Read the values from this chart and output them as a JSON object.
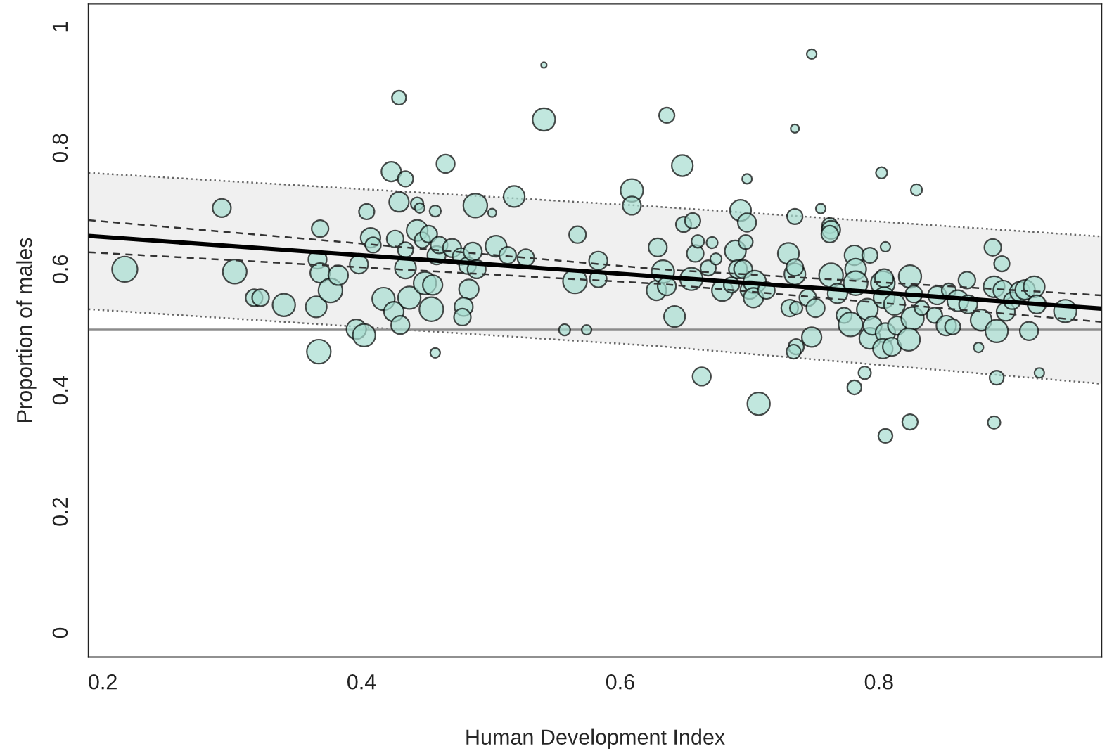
{
  "chart_data": {
    "type": "bubble",
    "xlabel": "Human Development Index",
    "ylabel": "Proportion of males",
    "xlim": [
      0.189,
      0.972
    ],
    "ylim": [
      -0.04,
      1.038
    ],
    "xticks": [
      0.2,
      0.4,
      0.6,
      0.8
    ],
    "yticks": [
      0,
      0.2,
      0.4,
      0.6,
      0.8,
      1
    ],
    "grid": false,
    "ref_lines": [
      {
        "axis": "y",
        "value": 0.5,
        "color": "#8c8c8c"
      }
    ],
    "series": [
      {
        "color": "#a6ddd0",
        "x": [
          0.217,
          0.292,
          0.302,
          0.317,
          0.322,
          0.34,
          0.367,
          0.365,
          0.368,
          0.366,
          0.368,
          0.376,
          0.382,
          0.398,
          0.396,
          0.402,
          0.404,
          0.407,
          0.409,
          0.417,
          0.423,
          0.425,
          0.426,
          0.429,
          0.429,
          0.434,
          0.43,
          0.434,
          0.434,
          0.437,
          0.443,
          0.445,
          0.443,
          0.447,
          0.449,
          0.454,
          0.452,
          0.455,
          0.457,
          0.457,
          0.458,
          0.46,
          0.465,
          0.47,
          0.477,
          0.482,
          0.483,
          0.479,
          0.478,
          0.488,
          0.486,
          0.489,
          0.501,
          0.504,
          0.513,
          0.518,
          0.527,
          0.541,
          0.541,
          0.557,
          0.574,
          0.565,
          0.567,
          0.583,
          0.583,
          0.609,
          0.609,
          0.629,
          0.628,
          0.633,
          0.636,
          0.642,
          0.636,
          0.648,
          0.649,
          0.656,
          0.655,
          0.658,
          0.66,
          0.663,
          0.668,
          0.671,
          0.674,
          0.679,
          0.686,
          0.689,
          0.691,
          0.695,
          0.693,
          0.698,
          0.698,
          0.697,
          0.7,
          0.704,
          0.707,
          0.703,
          0.713,
          0.73,
          0.731,
          0.735,
          0.735,
          0.735,
          0.735,
          0.736,
          0.734,
          0.736,
          0.745,
          0.748,
          0.748,
          0.751,
          0.755,
          0.763,
          0.762,
          0.763,
          0.762,
          0.768,
          0.773,
          0.778,
          0.781,
          0.782,
          0.781,
          0.782,
          0.789,
          0.793,
          0.791,
          0.793,
          0.795,
          0.802,
          0.803,
          0.804,
          0.805,
          0.805,
          0.804,
          0.805,
          0.803,
          0.812,
          0.81,
          0.814,
          0.824,
          0.824,
          0.827,
          0.826,
          0.823,
          0.829,
          0.833,
          0.845,
          0.843,
          0.852,
          0.854,
          0.861,
          0.857,
          0.868,
          0.869,
          0.877,
          0.879,
          0.888,
          0.889,
          0.891,
          0.889,
          0.891,
          0.895,
          0.896,
          0.898,
          0.903,
          0.909,
          0.913,
          0.916,
          0.92,
          0.922,
          0.924,
          0.944
        ],
        "values": [
          0.6,
          0.701,
          0.596,
          0.553,
          0.553,
          0.541,
          0.464,
          0.538,
          0.667,
          0.616,
          0.594,
          0.565,
          0.59,
          0.608,
          0.501,
          0.491,
          0.695,
          0.652,
          0.64,
          0.551,
          0.761,
          0.53,
          0.65,
          0.711,
          0.883,
          0.749,
          0.508,
          0.602,
          0.632,
          0.553,
          0.708,
          0.701,
          0.664,
          0.648,
          0.577,
          0.534,
          0.658,
          0.574,
          0.696,
          0.462,
          0.623,
          0.64,
          0.774,
          0.635,
          0.621,
          0.606,
          0.567,
          0.538,
          0.521,
          0.705,
          0.629,
          0.6,
          0.693,
          0.638,
          0.623,
          0.72,
          0.619,
          0.937,
          0.847,
          0.5,
          0.5,
          0.58,
          0.657,
          0.614,
          0.584,
          0.73,
          0.705,
          0.636,
          0.565,
          0.596,
          0.572,
          0.522,
          0.854,
          0.771,
          0.674,
          0.68,
          0.584,
          0.626,
          0.646,
          0.423,
          0.602,
          0.644,
          0.617,
          0.565,
          0.574,
          0.63,
          0.6,
          0.6,
          0.697,
          0.677,
          0.749,
          0.645,
          0.566,
          0.579,
          0.378,
          0.553,
          0.565,
          0.626,
          0.536,
          0.832,
          0.687,
          0.592,
          0.603,
          0.472,
          0.464,
          0.536,
          0.553,
          0.488,
          0.955,
          0.536,
          0.7,
          0.59,
          0.672,
          0.665,
          0.658,
          0.56,
          0.524,
          0.509,
          0.623,
          0.6,
          0.405,
          0.577,
          0.429,
          0.623,
          0.534,
          0.486,
          0.507,
          0.759,
          0.577,
          0.585,
          0.637,
          0.325,
          0.553,
          0.495,
          0.469,
          0.542,
          0.472,
          0.507,
          0.348,
          0.588,
          0.559,
          0.519,
          0.484,
          0.731,
          0.536,
          0.557,
          0.524,
          0.507,
          0.565,
          0.548,
          0.505,
          0.582,
          0.542,
          0.471,
          0.516,
          0.636,
          0.347,
          0.421,
          0.571,
          0.498,
          0.609,
          0.565,
          0.53,
          0.548,
          0.563,
          0.566,
          0.498,
          0.571,
          0.542,
          0.429,
          0.531
        ],
        "sizes": [
          1,
          0.52,
          0.89,
          0.44,
          0.44,
          0.79,
          0.89,
          0.69,
          0.44,
          0.52,
          0.6,
          0.89,
          0.6,
          0.52,
          0.6,
          0.79,
          0.37,
          0.6,
          0.37,
          0.79,
          0.6,
          0.6,
          0.44,
          0.6,
          0.31,
          0.37,
          0.52,
          0.69,
          0.37,
          0.79,
          0.25,
          0.15,
          0.69,
          0.37,
          0.79,
          0.89,
          0.44,
          0.6,
          0.2,
          0.15,
          0.52,
          0.44,
          0.52,
          0.52,
          0.44,
          0.44,
          0.6,
          0.52,
          0.44,
          0.89,
          0.52,
          0.52,
          0.11,
          0.69,
          0.44,
          0.69,
          0.44,
          0.05,
          0.79,
          0.2,
          0.15,
          0.89,
          0.44,
          0.52,
          0.44,
          0.79,
          0.52,
          0.52,
          0.6,
          0.79,
          0.52,
          0.69,
          0.37,
          0.69,
          0.37,
          0.37,
          0.79,
          0.44,
          0.25,
          0.52,
          0.37,
          0.2,
          0.2,
          0.69,
          0.37,
          0.69,
          0.52,
          0.52,
          0.69,
          0.52,
          0.15,
          0.31,
          0.52,
          0.79,
          0.79,
          0.6,
          0.44,
          0.69,
          0.44,
          0.11,
          0.37,
          0.69,
          0.44,
          0.37,
          0.31,
          0.25,
          0.44,
          0.6,
          0.15,
          0.52,
          0.15,
          0.89,
          0.37,
          0.52,
          0.44,
          0.6,
          0.37,
          0.89,
          0.6,
          0.69,
          0.31,
          0.89,
          0.25,
          0.37,
          0.69,
          0.69,
          0.52,
          0.2,
          0.89,
          0.52,
          0.15,
          0.31,
          0.69,
          0.6,
          0.6,
          0.69,
          0.52,
          0.52,
          0.37,
          0.79,
          0.44,
          0.79,
          0.79,
          0.2,
          0.31,
          0.52,
          0.37,
          0.6,
          0.31,
          0.69,
          0.37,
          0.44,
          0.52,
          0.15,
          0.69,
          0.44,
          0.25,
          0.31,
          0.69,
          0.79,
          0.37,
          0.6,
          0.52,
          0.44,
          0.6,
          0.6,
          0.52,
          0.69,
          0.52,
          0.15,
          0.79
        ]
      },
      {
        "type": "line",
        "color": "#000000",
        "line_style": "solid",
        "x": [
          0.189,
          0.63,
          0.972
        ],
        "values": [
          0.655,
          0.588,
          0.535
        ],
        "lower": [
          0.534,
          0.473,
          0.411
        ],
        "upper": [
          0.759,
          0.703,
          0.654
        ]
      },
      {
        "type": "line",
        "color": "#666666",
        "line_style": "dotted",
        "x": [
          0.189,
          0.63,
          0.972
        ],
        "values": [
          0.759,
          0.703,
          0.654
        ]
      },
      {
        "type": "line",
        "color": "#666666",
        "line_style": "dotted",
        "x": [
          0.189,
          0.63,
          0.972
        ],
        "values": [
          0.534,
          0.473,
          0.411
        ]
      },
      {
        "type": "line",
        "color": "#333333",
        "line_style": "dashed",
        "x": [
          0.189,
          0.63,
          0.972
        ],
        "values": [
          0.681,
          0.6,
          0.557
        ]
      },
      {
        "type": "line",
        "color": "#333333",
        "line_style": "dashed",
        "x": [
          0.189,
          0.63,
          0.972
        ],
        "values": [
          0.628,
          0.576,
          0.513
        ]
      }
    ]
  }
}
